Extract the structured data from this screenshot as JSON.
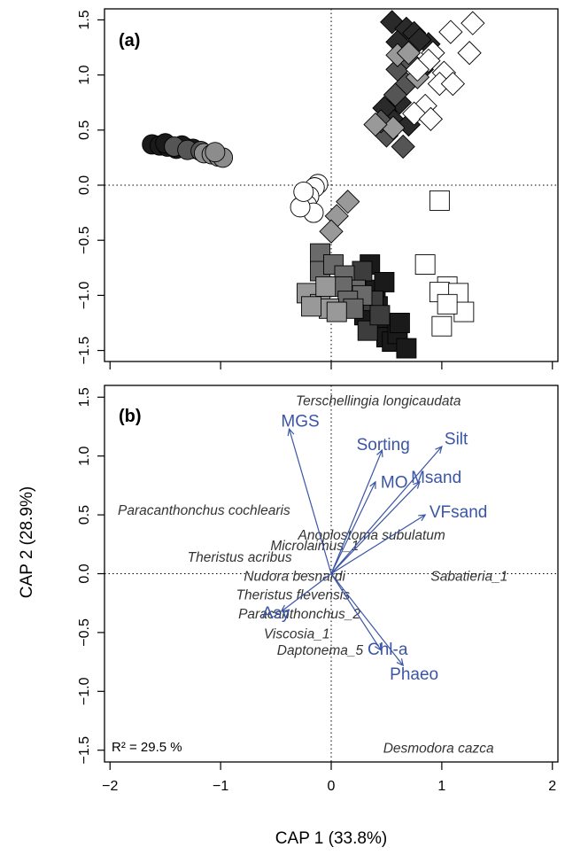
{
  "chart_data": [
    {
      "type": "scatter",
      "panel_label": "(a)",
      "xlim": [
        -2.05,
        2.05
      ],
      "ylim": [
        -1.6,
        1.6
      ],
      "xticks": [
        -2,
        -1,
        0,
        1,
        2
      ],
      "yticks": [
        -1.5,
        -1.0,
        -0.5,
        0.0,
        0.5,
        1.0,
        1.5
      ],
      "ytick_labels": [
        "−1.5",
        "−1.0",
        "−0.5",
        "0.0",
        "0.5",
        "1.0",
        "1.5"
      ],
      "reference_lines": {
        "x": 0,
        "y": 0,
        "style": "dotted"
      },
      "point_groups": [
        {
          "shape": "circle",
          "fill": "#1a1a1a",
          "points": [
            [
              -1.62,
              0.37
            ],
            [
              -1.55,
              0.36
            ],
            [
              -1.48,
              0.35
            ],
            [
              -1.4,
              0.33
            ],
            [
              -1.32,
              0.34
            ],
            [
              -1.25,
              0.33
            ],
            [
              -1.5,
              0.38
            ],
            [
              -1.35,
              0.36
            ]
          ]
        },
        {
          "shape": "circle",
          "fill": "#555555",
          "points": [
            [
              -1.42,
              0.35
            ],
            [
              -1.3,
              0.32
            ],
            [
              -1.18,
              0.31
            ]
          ]
        },
        {
          "shape": "circle",
          "fill": "#8c8c8c",
          "points": [
            [
              -1.15,
              0.29
            ],
            [
              -1.08,
              0.28
            ],
            [
              -1.02,
              0.26
            ],
            [
              -0.98,
              0.25
            ],
            [
              -1.05,
              0.3
            ]
          ]
        },
        {
          "shape": "circle",
          "fill": "#ffffff",
          "points": [
            [
              -0.12,
              0.01
            ],
            [
              -0.15,
              -0.02
            ],
            [
              -0.2,
              -0.1
            ],
            [
              -0.22,
              -0.18
            ],
            [
              -0.16,
              -0.25
            ],
            [
              -0.28,
              -0.2
            ],
            [
              -0.25,
              -0.06
            ]
          ]
        },
        {
          "shape": "diamond",
          "fill": "#2a2a2a",
          "points": [
            [
              0.55,
              1.48
            ],
            [
              0.68,
              1.42
            ],
            [
              0.75,
              1.38
            ],
            [
              0.88,
              1.28
            ],
            [
              0.8,
              1.32
            ],
            [
              0.6,
              1.3
            ],
            [
              0.5,
              0.68
            ],
            [
              0.62,
              0.75
            ],
            [
              0.55,
              0.6
            ],
            [
              0.82,
              1.05
            ],
            [
              0.7,
              0.55
            ],
            [
              0.48,
              0.7
            ]
          ]
        },
        {
          "shape": "diamond",
          "fill": "#555555",
          "points": [
            [
              0.6,
              1.05
            ],
            [
              0.72,
              1.12
            ],
            [
              0.68,
              0.92
            ],
            [
              0.5,
              0.45
            ],
            [
              0.65,
              0.35
            ],
            [
              0.45,
              0.58
            ],
            [
              0.58,
              0.82
            ]
          ]
        },
        {
          "shape": "diamond",
          "fill": "#999999",
          "points": [
            [
              0.6,
              1.18
            ],
            [
              0.7,
              1.2
            ],
            [
              0.56,
              0.52
            ],
            [
              0.78,
              0.98
            ],
            [
              0.4,
              0.55
            ],
            [
              0.15,
              -0.15
            ],
            [
              0.05,
              -0.28
            ],
            [
              0.0,
              -0.42
            ]
          ]
        },
        {
          "shape": "diamond",
          "fill": "#ffffff",
          "points": [
            [
              1.28,
              1.47
            ],
            [
              1.08,
              1.39
            ],
            [
              1.25,
              1.2
            ],
            [
              0.92,
              1.2
            ],
            [
              0.88,
              1.13
            ],
            [
              1.02,
              1.02
            ],
            [
              0.78,
              1.05
            ],
            [
              0.98,
              0.92
            ],
            [
              1.1,
              0.92
            ],
            [
              0.85,
              0.72
            ],
            [
              0.75,
              0.65
            ],
            [
              0.9,
              0.6
            ]
          ]
        },
        {
          "shape": "square",
          "fill": "#1a1a1a",
          "points": [
            [
              0.35,
              -0.72
            ],
            [
              0.4,
              -0.95
            ],
            [
              0.48,
              -0.88
            ],
            [
              0.42,
              -1.1
            ],
            [
              0.4,
              -1.22
            ],
            [
              0.45,
              -1.3
            ],
            [
              0.5,
              -1.38
            ],
            [
              0.55,
              -1.42
            ],
            [
              0.6,
              -1.35
            ],
            [
              0.68,
              -1.48
            ],
            [
              0.62,
              -1.25
            ],
            [
              0.3,
              -1.18
            ]
          ]
        },
        {
          "shape": "square",
          "fill": "#3d3d3d",
          "points": [
            [
              0.28,
              -0.78
            ],
            [
              0.38,
              -1.05
            ],
            [
              0.33,
              -1.32
            ],
            [
              0.44,
              -1.18
            ]
          ]
        },
        {
          "shape": "square",
          "fill": "#6a6a6a",
          "points": [
            [
              -0.1,
              -0.62
            ],
            [
              -0.1,
              -0.78
            ],
            [
              0.02,
              -0.72
            ],
            [
              0.12,
              -0.82
            ],
            [
              0.22,
              -0.95
            ],
            [
              0.28,
              -1.0
            ],
            [
              0.1,
              -0.92
            ],
            [
              0.15,
              -1.05
            ],
            [
              0.2,
              -1.12
            ]
          ]
        },
        {
          "shape": "square",
          "fill": "#999999",
          "points": [
            [
              -0.22,
              -0.98
            ],
            [
              -0.1,
              -1.08
            ],
            [
              -0.02,
              -1.12
            ],
            [
              0.05,
              -1.15
            ],
            [
              -0.18,
              -1.1
            ],
            [
              -0.05,
              -0.92
            ]
          ]
        },
        {
          "shape": "square",
          "fill": "#ffffff",
          "points": [
            [
              0.98,
              -0.14
            ],
            [
              0.85,
              -0.72
            ],
            [
              1.05,
              -0.92
            ],
            [
              0.98,
              -0.97
            ],
            [
              1.15,
              -0.98
            ],
            [
              1.2,
              -1.15
            ],
            [
              1.05,
              -1.08
            ],
            [
              1.0,
              -1.28
            ]
          ]
        }
      ]
    },
    {
      "type": "scatter",
      "panel_label": "(b)",
      "xlim": [
        -2.05,
        2.05
      ],
      "ylim": [
        -1.6,
        1.6
      ],
      "xticks": [
        -2,
        -1,
        0,
        1,
        2
      ],
      "xtick_labels": [
        "−2",
        "−1",
        "0",
        "1",
        "2"
      ],
      "yticks": [
        -1.5,
        -1.0,
        -0.5,
        0.0,
        0.5,
        1.0,
        1.5
      ],
      "ytick_labels": [
        "−1.5",
        "−1.0",
        "−0.5",
        "0.0",
        "0.5",
        "1.0",
        "1.5"
      ],
      "reference_lines": {
        "x": 0,
        "y": 0,
        "style": "dotted"
      },
      "xlabel": "CAP 1 (33.8%)",
      "ylabel": "CAP 2 (28.9%)",
      "annotation": "R² = 29.5 %",
      "env_color": "#3b55a6",
      "vectors": [
        {
          "name": "MGS",
          "x": -0.38,
          "y": 1.23,
          "lx": -0.28,
          "ly": 1.25
        },
        {
          "name": "Sorting",
          "x": 0.46,
          "y": 1.05,
          "lx": 0.47,
          "ly": 1.05
        },
        {
          "name": "Silt",
          "x": 1.0,
          "y": 1.08,
          "lx": 1.13,
          "ly": 1.1
        },
        {
          "name": "MO",
          "x": 0.4,
          "y": 0.78,
          "lx": 0.57,
          "ly": 0.73
        },
        {
          "name": "Msand",
          "x": 0.8,
          "y": 0.78,
          "lx": 0.95,
          "ly": 0.77
        },
        {
          "name": "VFsand",
          "x": 0.85,
          "y": 0.5,
          "lx": 1.15,
          "ly": 0.48
        },
        {
          "name": "Asy",
          "x": -0.45,
          "y": -0.32,
          "lx": -0.5,
          "ly": -0.38
        },
        {
          "name": "Chl-a",
          "x": 0.45,
          "y": -0.65,
          "lx": 0.51,
          "ly": -0.69
        },
        {
          "name": "Phaeo",
          "x": 0.65,
          "y": -0.78,
          "lx": 0.75,
          "ly": -0.9
        }
      ],
      "species": [
        {
          "name": "Terschellingia longicaudata",
          "x": -0.32,
          "y": 1.43
        },
        {
          "name": "Paracanthonchus cochlearis",
          "x": -1.93,
          "y": 0.5
        },
        {
          "name": "Anoplostoma subulatum",
          "x": -0.3,
          "y": 0.29
        },
        {
          "name": "Microlaimus_1",
          "x": -0.55,
          "y": 0.2
        },
        {
          "name": "Theristus acribus",
          "x": -1.3,
          "y": 0.1
        },
        {
          "name": "Nudora besnardi",
          "x": -0.79,
          "y": -0.06
        },
        {
          "name": "Sabatieria_1",
          "x": 0.9,
          "y": -0.06
        },
        {
          "name": "Theristus flevensis",
          "x": -0.86,
          "y": -0.22
        },
        {
          "name": "Paracanthonchus_2",
          "x": -0.84,
          "y": -0.38
        },
        {
          "name": "Viscosia_1",
          "x": -0.61,
          "y": -0.55
        },
        {
          "name": "Daptonema_5",
          "x": -0.49,
          "y": -0.69
        },
        {
          "name": "Desmodora cazca",
          "x": 0.47,
          "y": -1.52
        }
      ]
    }
  ]
}
